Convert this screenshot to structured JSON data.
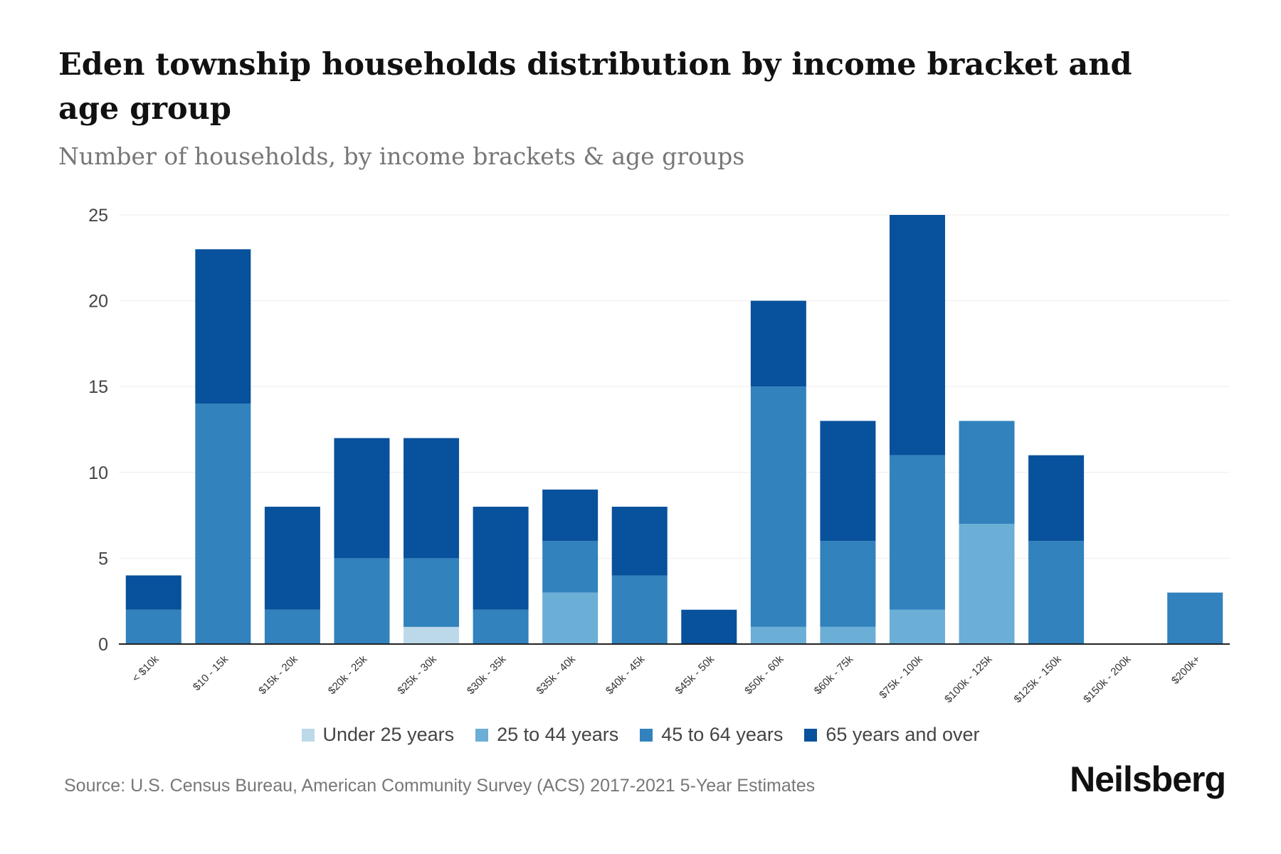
{
  "title": "Eden township households distribution by income bracket and age group",
  "subtitle": "Number of households, by income brackets & age groups",
  "source": "Source: U.S. Census Bureau, American Community Survey (ACS) 2017-2021 5-Year Estimates",
  "logo": "Neilsberg",
  "chart_data": {
    "type": "bar",
    "stacked": true,
    "title": "Eden township households distribution by income bracket and age group",
    "ylim": [
      0,
      25
    ],
    "yticks": [
      0,
      5,
      10,
      15,
      20,
      25
    ],
    "grid": true,
    "legend_position": "bottom",
    "categories": [
      "< $10k",
      "$10 - 15k",
      "$15k - 20k",
      "$20k - 25k",
      "$25k - 30k",
      "$30k - 35k",
      "$35k - 40k",
      "$40k - 45k",
      "$45k - 50k",
      "$50k - 60k",
      "$60k - 75k",
      "$75k - 100k",
      "$100k - 125k",
      "$125k - 150k",
      "$150k - 200k",
      "$200k+"
    ],
    "series": [
      {
        "name": "Under 25 years",
        "color": "#bcd9ea",
        "values": [
          0,
          0,
          0,
          0,
          1,
          0,
          0,
          0,
          0,
          0,
          0,
          0,
          0,
          0,
          0,
          0
        ]
      },
      {
        "name": "25 to 44 years",
        "color": "#6baed6",
        "values": [
          0,
          0,
          0,
          0,
          0,
          0,
          3,
          0,
          0,
          1,
          1,
          2,
          7,
          0,
          0,
          0
        ]
      },
      {
        "name": "45 to 64 years",
        "color": "#3182bd",
        "values": [
          2,
          14,
          2,
          5,
          4,
          2,
          3,
          4,
          0,
          14,
          5,
          9,
          6,
          6,
          0,
          3
        ]
      },
      {
        "name": "65 years and over",
        "color": "#08519c",
        "values": [
          2,
          9,
          6,
          7,
          7,
          6,
          3,
          4,
          2,
          5,
          7,
          14,
          0,
          5,
          0,
          0
        ]
      }
    ]
  }
}
